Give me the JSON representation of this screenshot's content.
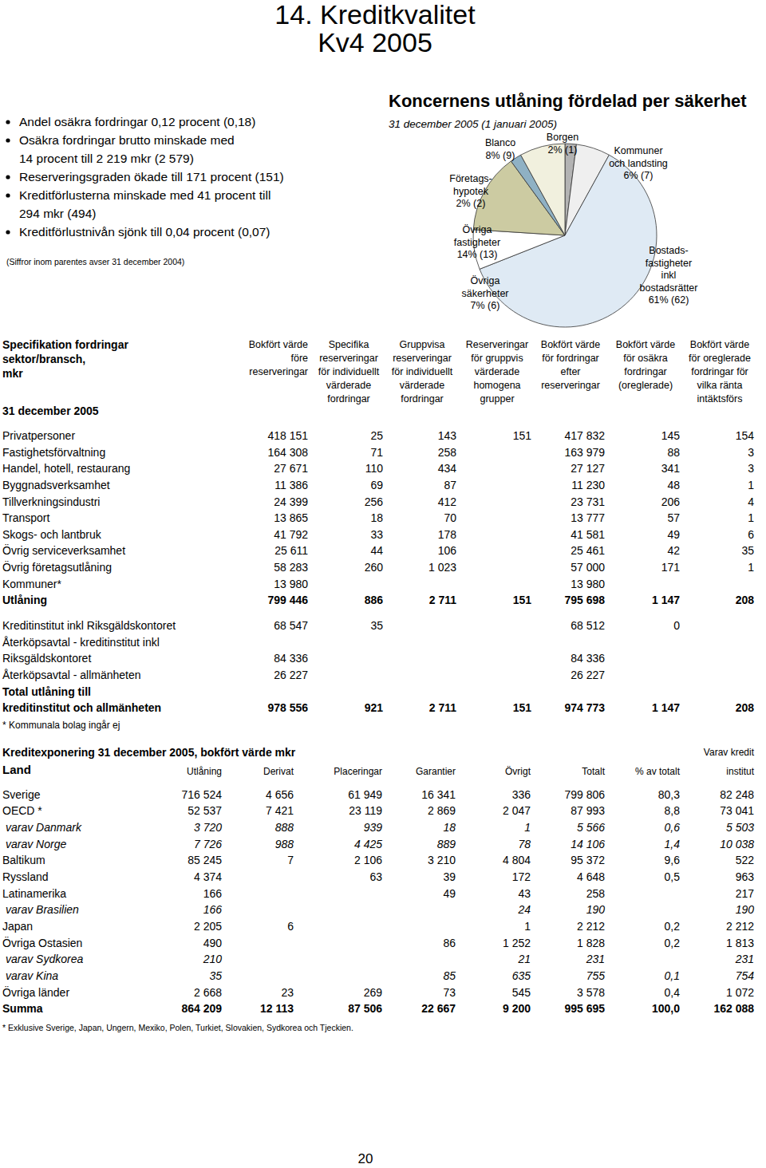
{
  "header": {
    "title": "14. Kreditkvalitet",
    "subtitle": "Kv4 2005"
  },
  "bullets": [
    [
      "Andel osäkra fordringar 0,12 procent (0,18)"
    ],
    [
      "Osäkra fordringar brutto minskade med",
      "14 procent till 2 219 mkr (2 579)"
    ],
    [
      "Reserveringsgraden ökade till 171 procent (151)"
    ],
    [
      "Kreditförlusterna minskade med 41 procent till",
      "294 mkr (494)"
    ],
    [
      "Kreditförlustnivån sjönk till 0,04 procent (0,07)"
    ]
  ],
  "note": "(Siffror inom parentes avser 31 december 2004)",
  "chart_data": {
    "type": "pie",
    "title": "Koncernens utlåning fördelad per säkerhet",
    "subtitle": "31 december 2005 (1 januari 2005)",
    "categories": [
      "Borgen",
      "Kommuner\noch landsting",
      "Bostads-\nfastigheter\ninkl\nbostadsrätter",
      "Övriga\nsäkerheter",
      "Övriga\nfastigheter",
      "Företags-\nhypotek",
      "Blanco"
    ],
    "values": [
      2,
      6,
      61,
      7,
      14,
      2,
      8
    ],
    "value_labels": [
      "2% (1)",
      "6% (7)",
      "61% (62)",
      "7% (6)",
      "14% (13)",
      "2% (2)",
      "8% (9)"
    ],
    "colors": [
      "#b3b3b3",
      "#efefef",
      "#dfeaf4",
      "#ffffff",
      "#cccba2",
      "#8fb1c4",
      "#f1f0de"
    ],
    "data_labels": true
  },
  "table1": {
    "title_lines": [
      "Specifikation fordringar",
      "sektor/bransch,",
      "mkr"
    ],
    "date": "31 december 2005",
    "columns": [
      [
        "Bokfört värde",
        "före",
        "reserveringar"
      ],
      [
        "Specifika",
        "reserveringar",
        "för individuellt",
        "värderade",
        "fordringar"
      ],
      [
        "Gruppvisa",
        "reserveringar",
        "för individuellt",
        "värderade",
        "fordringar"
      ],
      [
        "Reserveringar",
        "för gruppvis",
        "värderade",
        "homogena",
        "grupper"
      ],
      [
        "Bokfört värde",
        "för fordringar",
        "efter",
        "reserveringar"
      ],
      [
        "Bokfört värde",
        "för osäkra",
        "fordringar",
        "(oreglerade)"
      ],
      [
        "Bokfört värde",
        "för oreglerade",
        "fordringar för",
        "vilka ränta",
        "intäktsförs"
      ]
    ],
    "rows": [
      {
        "label": "Privatpersoner",
        "values": [
          "418 151",
          "25",
          "143",
          "151",
          "417 832",
          "145",
          "154"
        ]
      },
      {
        "label": "Fastighetsförvaltning",
        "values": [
          "164 308",
          "71",
          "258",
          null,
          "163 979",
          "88",
          "3"
        ]
      },
      {
        "label": "Handel, hotell, restaurang",
        "values": [
          "27 671",
          "110",
          "434",
          null,
          "27 127",
          "341",
          "3"
        ]
      },
      {
        "label": "Byggnadsverksamhet",
        "values": [
          "11 386",
          "69",
          "87",
          null,
          "11 230",
          "48",
          "1"
        ]
      },
      {
        "label": "Tillverkningsindustri",
        "values": [
          "24 399",
          "256",
          "412",
          null,
          "23 731",
          "206",
          "4"
        ]
      },
      {
        "label": "Transport",
        "values": [
          "13 865",
          "18",
          "70",
          null,
          "13 777",
          "57",
          "1"
        ]
      },
      {
        "label": "Skogs- och lantbruk",
        "values": [
          "41 792",
          "33",
          "178",
          null,
          "41 581",
          "49",
          "6"
        ]
      },
      {
        "label": "Övrig serviceverksamhet",
        "values": [
          "25 611",
          "44",
          "106",
          null,
          "25 461",
          "42",
          "35"
        ]
      },
      {
        "label": "Övrig företagsutlåning",
        "values": [
          "58 283",
          "260",
          "1 023",
          null,
          "57 000",
          "171",
          "1"
        ]
      },
      {
        "label": "Kommuner*",
        "values": [
          "13 980",
          null,
          null,
          null,
          "13 980",
          null,
          null
        ]
      },
      {
        "label": "Utlåning",
        "values": [
          "799 446",
          "886",
          "2 711",
          "151",
          "795 698",
          "1 147",
          "208"
        ]
      },
      {
        "label": "Kreditinstitut inkl Riksgäldskontoret",
        "values": [
          "68 547",
          "35",
          null,
          null,
          "68 512",
          "0",
          null
        ]
      },
      {
        "label": "Återköpsavtal - kreditinstitut inkl",
        "values": [
          null,
          null,
          null,
          null,
          null,
          null,
          null
        ]
      },
      {
        "label": "Riksgäldskontoret",
        "values": [
          "84 336",
          null,
          null,
          null,
          "84 336",
          null,
          null
        ]
      },
      {
        "label": "Återköpsavtal - allmänheten",
        "values": [
          "26 227",
          null,
          null,
          null,
          "26 227",
          null,
          null
        ]
      },
      {
        "label": "Total utlåning till",
        "values": [
          null,
          null,
          null,
          null,
          null,
          null,
          null
        ]
      },
      {
        "label": "kreditinstitut och allmänheten",
        "values": [
          "978 556",
          "921",
          "2 711",
          "151",
          "974 773",
          "1 147",
          "208"
        ]
      }
    ],
    "footnote": "* Kommunala bolag ingår ej"
  },
  "table2": {
    "title": "Kreditexponering 31 december 2005, bokfört värde mkr",
    "columns": [
      [
        "Land"
      ],
      [
        "Utlåning"
      ],
      [
        "Derivat"
      ],
      [
        "Placeringar"
      ],
      [
        "Garantier"
      ],
      [
        "Övrigt"
      ],
      [
        "Totalt"
      ],
      [
        "% av totalt"
      ],
      [
        "Varav kredit",
        "institut"
      ]
    ],
    "rows": [
      {
        "label": "Sverige",
        "values": [
          "716 524",
          "4 656",
          "61 949",
          "16 341",
          "336",
          "799 806",
          "80,3",
          "82 248"
        ]
      },
      {
        "label": "OECD *",
        "values": [
          "52 537",
          "7 421",
          "23 119",
          "2 869",
          "2 047",
          "87 993",
          "8,8",
          "73 041"
        ]
      },
      {
        "label": "varav Danmark",
        "values": [
          "3 720",
          "888",
          "939",
          "18",
          "1",
          "5 566",
          "0,6",
          "5 503"
        ]
      },
      {
        "label": "varav Norge",
        "values": [
          "7 726",
          "988",
          "4 425",
          "889",
          "78",
          "14 106",
          "1,4",
          "10 038"
        ]
      },
      {
        "label": "Baltikum",
        "values": [
          "85 245",
          "7",
          "2 106",
          "3 210",
          "4 804",
          "95 372",
          "9,6",
          "522"
        ]
      },
      {
        "label": "Ryssland",
        "values": [
          "4 374",
          null,
          "63",
          "39",
          "172",
          "4 648",
          "0,5",
          "963"
        ]
      },
      {
        "label": "Latinamerika",
        "values": [
          "166",
          null,
          null,
          "49",
          "43",
          "258",
          null,
          "217"
        ]
      },
      {
        "label": "varav Brasilien",
        "values": [
          "166",
          null,
          null,
          null,
          "24",
          "190",
          null,
          "190"
        ]
      },
      {
        "label": "Japan",
        "values": [
          "2 205",
          "6",
          null,
          null,
          "1",
          "2 212",
          "0,2",
          "2 212"
        ]
      },
      {
        "label": "Övriga Ostasien",
        "values": [
          "490",
          null,
          null,
          "86",
          "1 252",
          "1 828",
          "0,2",
          "1 813"
        ]
      },
      {
        "label": "varav Sydkorea",
        "values": [
          "210",
          null,
          null,
          null,
          "21",
          "231",
          null,
          "231"
        ]
      },
      {
        "label": "varav Kina",
        "values": [
          "35",
          null,
          null,
          "85",
          "635",
          "755",
          "0,1",
          "754"
        ]
      },
      {
        "label": "Övriga länder",
        "values": [
          "2 668",
          "23",
          "269",
          "73",
          "545",
          "3 578",
          "0,4",
          "1 072"
        ]
      },
      {
        "label": "Summa",
        "values": [
          "864 209",
          "12 113",
          "87 506",
          "22 667",
          "9 200",
          "995 695",
          "100,0",
          "162 088"
        ]
      }
    ],
    "footnote": "* Exklusive Sverige, Japan, Ungern, Mexiko, Polen, Turkiet, Slovakien, Sydkorea och Tjeckien."
  },
  "page_number": "20"
}
